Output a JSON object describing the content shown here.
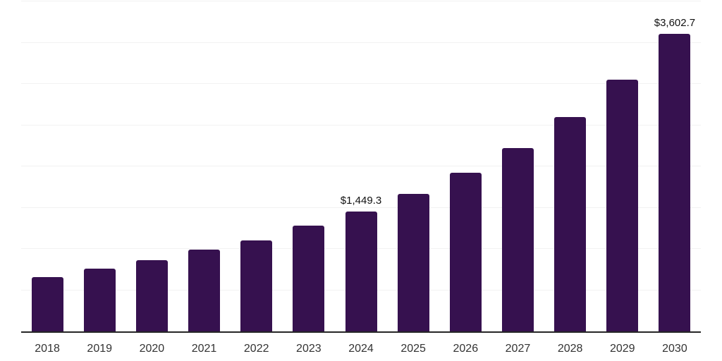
{
  "chart_data": {
    "type": "bar",
    "title": "",
    "xlabel": "",
    "ylabel": "",
    "categories": [
      "2018",
      "2019",
      "2020",
      "2021",
      "2022",
      "2023",
      "2024",
      "2025",
      "2026",
      "2027",
      "2028",
      "2029",
      "2030"
    ],
    "values": [
      660,
      760,
      860,
      990,
      1105,
      1280,
      1449.3,
      1670,
      1920,
      2220,
      2595,
      3055,
      3602.7
    ],
    "data_labels": [
      "",
      "",
      "",
      "",
      "",
      "",
      "$1,449.3",
      "",
      "",
      "",
      "",
      "",
      "$3,602.7"
    ],
    "ylim": [
      0,
      4000
    ],
    "gridline_step": 500,
    "grid": true,
    "legend_position": "none",
    "bar_color": "#36114F",
    "axis_line_color": "#262626",
    "gridline_color": "#F2F2F2",
    "tick_label_color": "#333333",
    "data_label_color": "#111111",
    "background_color": "#FFFFFF"
  }
}
